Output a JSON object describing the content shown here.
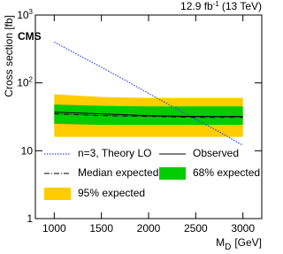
{
  "chart_data": {
    "type": "line",
    "title": "CMS",
    "lumi_label": {
      "text": "12.9 fb",
      "sup": "-1",
      "rest": "(13 TeV)"
    },
    "x_label": {
      "main": "M",
      "sub": "D",
      "unit": "[GeV]"
    },
    "y_label": "Cross section [fb]",
    "log_y": true,
    "xlim": [
      800,
      3200
    ],
    "xticks": [
      1000,
      1500,
      2000,
      2500,
      3000
    ],
    "ylim": [
      1,
      1000
    ],
    "yticks": [
      1,
      10,
      {
        "value": 100,
        "label": "10",
        "exp": "2"
      },
      {
        "value": 1000,
        "label": "10",
        "exp": "3"
      }
    ],
    "series": [
      {
        "name": "n=3, Theory LO",
        "style": "dotted",
        "color": "#3344ee",
        "x": [
          1000,
          1250,
          1500,
          1750,
          2000,
          2250,
          2500,
          2750,
          3000
        ],
        "values": [
          400,
          260,
          170,
          110,
          70,
          45,
          29,
          19,
          12
        ]
      },
      {
        "name": "Observed",
        "style": "solid",
        "color": "#000000",
        "x": [
          1000,
          1500,
          2000,
          2500,
          3000
        ],
        "values": [
          37,
          35,
          33,
          32,
          32
        ]
      },
      {
        "name": "Median expected",
        "style": "dashdot",
        "color": "#000000",
        "x": [
          1000,
          1500,
          2000,
          2500,
          3000
        ],
        "values": [
          35,
          33,
          32,
          31,
          31
        ]
      },
      {
        "name": "68% expected",
        "style": "band",
        "color": "#00cc00",
        "x": [
          1000,
          1500,
          2000,
          2500,
          3000
        ],
        "lower": [
          25,
          24,
          24,
          24,
          24
        ],
        "upper": [
          48,
          46,
          45,
          45,
          45
        ]
      },
      {
        "name": "95% expected",
        "style": "band",
        "color": "#ffcc00",
        "x": [
          1000,
          1500,
          2000,
          2500,
          3000
        ],
        "lower": [
          16,
          16,
          16,
          16,
          16
        ],
        "upper": [
          68,
          62,
          60,
          60,
          60
        ]
      }
    ]
  }
}
